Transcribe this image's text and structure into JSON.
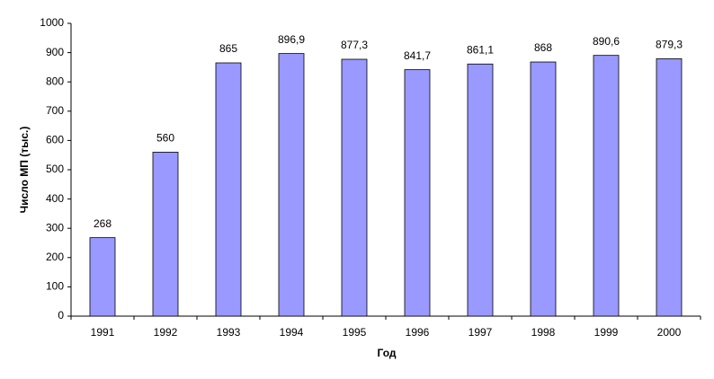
{
  "chart_data": {
    "type": "bar",
    "categories": [
      "1991",
      "1992",
      "1993",
      "1994",
      "1995",
      "1996",
      "1997",
      "1998",
      "1999",
      "2000"
    ],
    "values": [
      268,
      560,
      865,
      896.9,
      877.3,
      841.7,
      861.1,
      868,
      890.6,
      879.3
    ],
    "value_labels": [
      "268",
      "560",
      "865",
      "896,9",
      "877,3",
      "841,7",
      "861,1",
      "868",
      "890,6",
      "879,3"
    ],
    "color": "#9999ff",
    "ylim": [
      0,
      1000
    ],
    "yticks": [
      0,
      100,
      200,
      300,
      400,
      500,
      600,
      700,
      800,
      900,
      1000
    ],
    "grid": false,
    "xlabel": "Год",
    "ylabel": "Число МП (тыс.)"
  }
}
